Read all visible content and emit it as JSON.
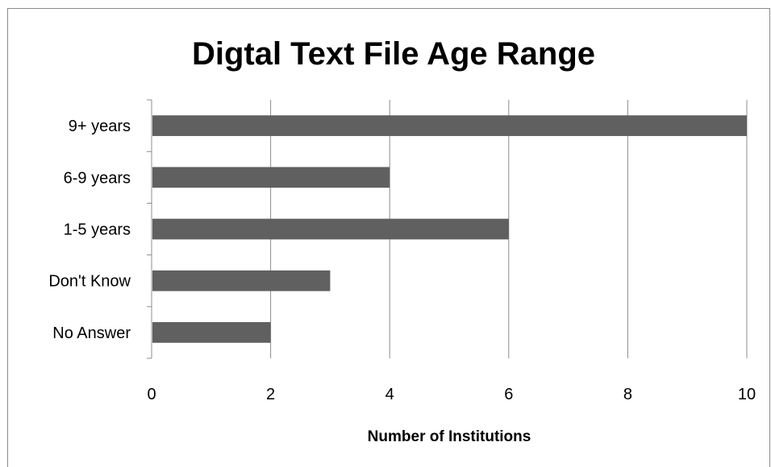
{
  "chart_data": {
    "type": "bar",
    "orientation": "horizontal",
    "title": "Digtal Text File Age Range",
    "xlabel": "Number of Institutions",
    "ylabel": "",
    "categories": [
      "9+ years",
      "6-9 years",
      "1-5 years",
      "Don't Know",
      "No Answer"
    ],
    "values": [
      10,
      4,
      6,
      3,
      2
    ],
    "xlim": [
      0,
      10
    ],
    "xticks": [
      0,
      2,
      4,
      6,
      8,
      10
    ],
    "grid": "vertical",
    "legend": "none",
    "bar_color": "#606060",
    "grid_color": "#8c8c8c"
  }
}
